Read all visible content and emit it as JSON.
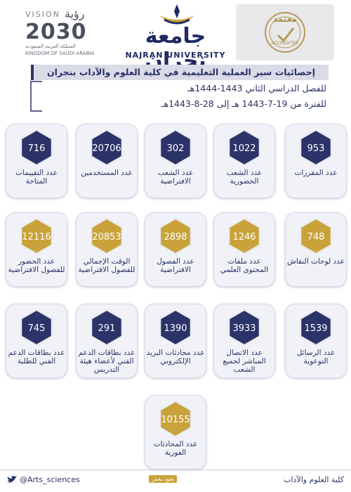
{
  "header": {
    "vision_logo": [
      "VISION",
      "رؤية",
      "2030",
      "المملكة العربية السعودية",
      "KINGDOM OF SAUDI ARABIA"
    ],
    "university": [
      "جامعة نجران",
      "NAJRAN UNIVERSITY"
    ],
    "accreditation": [
      "معتمد",
      "ACCREDITED"
    ]
  },
  "title": "إحصائيات سير العملية التعليمية في كلية العلوم والآداب بنجران",
  "subtitles": [
    "للفصل الدراسي الثاني 1443-1444هـ",
    "للفترة من 19-7-1443 هـ إلى 28-8-1443هـ"
  ],
  "rows": [
    [
      {
        "value": 953,
        "label": "عدد المقررات"
      },
      {
        "value": 1022,
        "label": "عدد الشعب الحضورية"
      },
      {
        "value": 302,
        "label": "عدد الشعب الافتراضية"
      },
      {
        "value": 20706,
        "label": "عدد المستخدمين"
      },
      {
        "value": 716,
        "label": "عدد التقييمات المتاحة"
      }
    ],
    [
      {
        "value": 748,
        "label": "عدد لوحات النقاش"
      },
      {
        "value": 1246,
        "label": "عدد ملفات المحتوى العلمي"
      },
      {
        "value": 2898,
        "label": "عدد الفصول الافتراضية"
      },
      {
        "value": 20853,
        "label": "الوقت الإجمالي للفصول الافتراضية"
      },
      {
        "value": 12116,
        "label": "عدد الحضور للفصول الافتراضية"
      }
    ],
    [
      {
        "value": 1539,
        "label": "عدد الرسائل التوعوية"
      },
      {
        "value": 3933,
        "label": "عدد الاتصال المباشر لجميع الشعب"
      },
      {
        "value": 1390,
        "label": "عدد محادثات البريد الإلكتروني"
      },
      {
        "value": 291,
        "label": "عدد بطاقات الدعم الفني لأعضاء هيئة التدريس"
      },
      {
        "value": 745,
        "label": "عدد بطاقات الدعم الفني للطلبة"
      }
    ],
    [
      {
        "value": 10155,
        "label": "عدد المحادثات الفورية"
      }
    ]
  ],
  "footer": {
    "handle": "@Arts_sciences",
    "hashtag": "نعود بحذر",
    "college": "كلية العلوم والآداب"
  }
}
